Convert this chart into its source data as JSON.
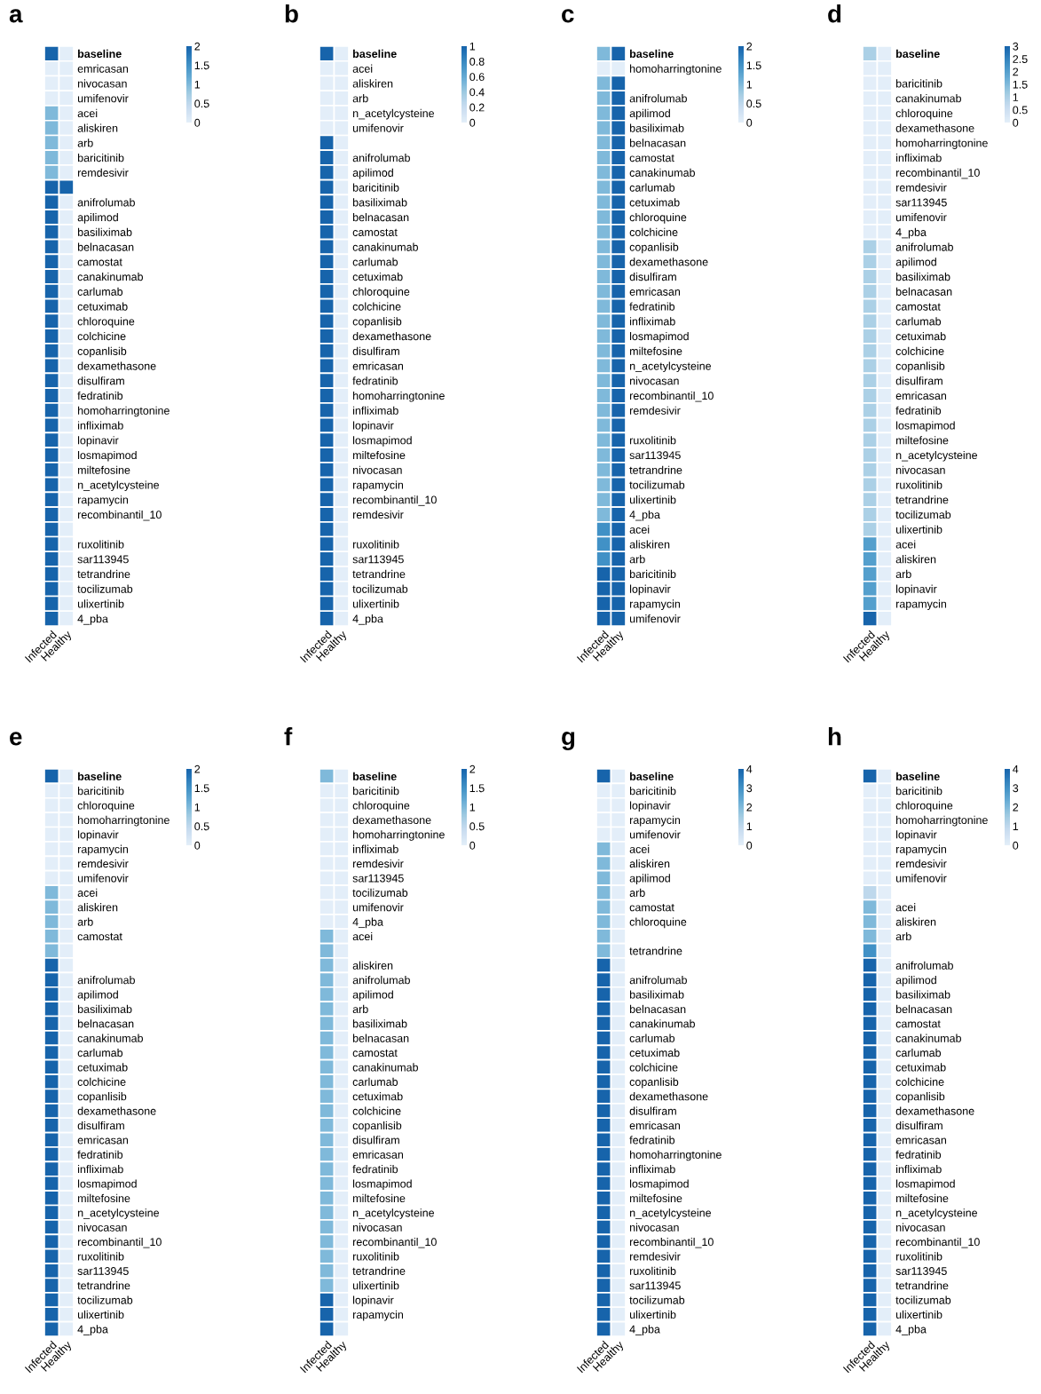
{
  "chart_data": [
    {
      "type": "heatmap",
      "title": "a",
      "categories": [
        "Infected",
        "Healthy"
      ],
      "clim": [
        0,
        2
      ],
      "cticks": [
        0,
        0.5,
        1,
        1.5,
        2
      ],
      "y_categories": [
        "baseline",
        "emricasan",
        "nivocasan",
        "umifenovir",
        "acei",
        "aliskiren",
        "arb",
        "baricitinib",
        "remdesivir",
        null,
        "anifrolumab",
        "apilimod",
        "basiliximab",
        "belnacasan",
        "camostat",
        "canakinumab",
        "carlumab",
        "cetuximab",
        "chloroquine",
        "colchicine",
        "copanlisib",
        "dexamethasone",
        "disulfiram",
        "fedratinib",
        "homoharringtonine",
        "infliximab",
        "lopinavir",
        "losmapimod",
        "miltefosine",
        "n_acetylcysteine",
        "rapamycin",
        "recombinantil_10",
        null,
        "ruxolitinib",
        "sar113945",
        "tetrandrine",
        "tocilizumab",
        "ulixertinib",
        "4_pba"
      ],
      "cells": [
        [
          2,
          0
        ],
        [
          0,
          0
        ],
        [
          0,
          0
        ],
        [
          0,
          0
        ],
        [
          1,
          0
        ],
        [
          1,
          0
        ],
        [
          1,
          0
        ],
        [
          1,
          0
        ],
        [
          1,
          0
        ],
        [
          2,
          2
        ],
        [
          2,
          0
        ],
        [
          2,
          0
        ],
        [
          2,
          0
        ],
        [
          2,
          0
        ],
        [
          2,
          0
        ],
        [
          2,
          0
        ],
        [
          2,
          0
        ],
        [
          2,
          0
        ],
        [
          2,
          0
        ],
        [
          2,
          0
        ],
        [
          2,
          0
        ],
        [
          2,
          0
        ],
        [
          2,
          0
        ],
        [
          2,
          0
        ],
        [
          2,
          0
        ],
        [
          2,
          0
        ],
        [
          2,
          0
        ],
        [
          2,
          0
        ],
        [
          2,
          0
        ],
        [
          2,
          0
        ],
        [
          2,
          0
        ],
        [
          2,
          0
        ],
        [
          2,
          0
        ],
        [
          2,
          0
        ],
        [
          2,
          0
        ],
        [
          2,
          0
        ],
        [
          2,
          0
        ],
        [
          2,
          0
        ],
        [
          2,
          0
        ]
      ]
    },
    {
      "type": "heatmap",
      "title": "b",
      "categories": [
        "Infected",
        "Healthy"
      ],
      "clim": [
        0,
        1
      ],
      "cticks": [
        0,
        0.2,
        0.4,
        0.6,
        0.8,
        1
      ],
      "y_categories": [
        "baseline",
        "acei",
        "aliskiren",
        "arb",
        "n_acetylcysteine",
        "umifenovir",
        null,
        "anifrolumab",
        "apilimod",
        "baricitinib",
        "basiliximab",
        "belnacasan",
        "camostat",
        "canakinumab",
        "carlumab",
        "cetuximab",
        "chloroquine",
        "colchicine",
        "copanlisib",
        "dexamethasone",
        "disulfiram",
        "emricasan",
        "fedratinib",
        "homoharringtonine",
        "infliximab",
        "lopinavir",
        "losmapimod",
        "miltefosine",
        "nivocasan",
        "rapamycin",
        "recombinantil_10",
        "remdesivir",
        null,
        "ruxolitinib",
        "sar113945",
        "tetrandrine",
        "tocilizumab",
        "ulixertinib",
        "4_pba"
      ],
      "cells": [
        [
          1,
          0
        ],
        [
          0,
          0
        ],
        [
          0,
          0
        ],
        [
          0,
          0
        ],
        [
          0,
          0
        ],
        [
          0,
          0
        ],
        [
          1,
          0
        ],
        [
          1,
          0
        ],
        [
          1,
          0
        ],
        [
          1,
          0
        ],
        [
          1,
          0
        ],
        [
          1,
          0
        ],
        [
          1,
          0
        ],
        [
          1,
          0
        ],
        [
          1,
          0
        ],
        [
          1,
          0
        ],
        [
          1,
          0
        ],
        [
          1,
          0
        ],
        [
          1,
          0
        ],
        [
          1,
          0
        ],
        [
          1,
          0
        ],
        [
          1,
          0
        ],
        [
          1,
          0
        ],
        [
          1,
          0
        ],
        [
          1,
          0
        ],
        [
          1,
          0
        ],
        [
          1,
          0
        ],
        [
          1,
          0
        ],
        [
          1,
          0
        ],
        [
          1,
          0
        ],
        [
          1,
          0
        ],
        [
          1,
          0
        ],
        [
          1,
          0
        ],
        [
          1,
          0
        ],
        [
          1,
          0
        ],
        [
          1,
          0
        ],
        [
          1,
          0
        ],
        [
          1,
          0
        ],
        [
          1,
          0
        ]
      ]
    },
    {
      "type": "heatmap",
      "title": "c",
      "categories": [
        "Infected",
        "Healthy"
      ],
      "clim": [
        0,
        2
      ],
      "cticks": [
        0,
        0.5,
        1,
        1.5,
        2
      ],
      "y_categories": [
        "baseline",
        "homoharringtonine",
        null,
        "anifrolumab",
        "apilimod",
        "basiliximab",
        "belnacasan",
        "camostat",
        "canakinumab",
        "carlumab",
        "cetuximab",
        "chloroquine",
        "colchicine",
        "copanlisib",
        "dexamethasone",
        "disulfiram",
        "emricasan",
        "fedratinib",
        "infliximab",
        "losmapimod",
        "miltefosine",
        "n_acetylcysteine",
        "nivocasan",
        "recombinantil_10",
        "remdesivir",
        null,
        "ruxolitinib",
        "sar113945",
        "tetrandrine",
        "tocilizumab",
        "ulixertinib",
        "4_pba",
        "acei",
        "aliskiren",
        "arb",
        "baricitinib",
        "lopinavir",
        "rapamycin",
        "umifenovir"
      ],
      "cells": [
        [
          1,
          2
        ],
        [
          0,
          0
        ],
        [
          1,
          2
        ],
        [
          1,
          2
        ],
        [
          1,
          2
        ],
        [
          1,
          2
        ],
        [
          1,
          2
        ],
        [
          1,
          2
        ],
        [
          1,
          2
        ],
        [
          1,
          2
        ],
        [
          1,
          2
        ],
        [
          1,
          2
        ],
        [
          1,
          2
        ],
        [
          1,
          2
        ],
        [
          1,
          2
        ],
        [
          1,
          2
        ],
        [
          1,
          2
        ],
        [
          1,
          2
        ],
        [
          1,
          2
        ],
        [
          1,
          2
        ],
        [
          1,
          2
        ],
        [
          1,
          2
        ],
        [
          1,
          2
        ],
        [
          1,
          2
        ],
        [
          1,
          2
        ],
        [
          1,
          2
        ],
        [
          1,
          2
        ],
        [
          1,
          2
        ],
        [
          1,
          2
        ],
        [
          1,
          2
        ],
        [
          1,
          2
        ],
        [
          1,
          2
        ],
        [
          1.5,
          2
        ],
        [
          1.5,
          2
        ],
        [
          1.5,
          2
        ],
        [
          2,
          2
        ],
        [
          2,
          2
        ],
        [
          2,
          2
        ],
        [
          2,
          2
        ]
      ]
    },
    {
      "type": "heatmap",
      "title": "d",
      "categories": [
        "Infected",
        "Healthy"
      ],
      "clim": [
        0,
        3
      ],
      "cticks": [
        0,
        0.5,
        1,
        1.5,
        2,
        2.5,
        3
      ],
      "y_categories": [
        "baseline",
        null,
        "baricitinib",
        "canakinumab",
        "chloroquine",
        "dexamethasone",
        "homoharringtonine",
        "infliximab",
        "recombinantil_10",
        "remdesivir",
        "sar113945",
        "umifenovir",
        "4_pba",
        "anifrolumab",
        "apilimod",
        "basiliximab",
        "belnacasan",
        "camostat",
        "carlumab",
        "cetuximab",
        "colchicine",
        "copanlisib",
        "disulfiram",
        "emricasan",
        "fedratinib",
        "losmapimod",
        "miltefosine",
        "n_acetylcysteine",
        "nivocasan",
        "ruxolitinib",
        "tetrandrine",
        "tocilizumab",
        "ulixertinib",
        "acei",
        "aliskiren",
        "arb",
        "lopinavir",
        "rapamycin",
        null
      ],
      "cells": [
        [
          1,
          0
        ],
        [
          0,
          0
        ],
        [
          0,
          0
        ],
        [
          0,
          0
        ],
        [
          0,
          0
        ],
        [
          0,
          0
        ],
        [
          0,
          0
        ],
        [
          0,
          0
        ],
        [
          0,
          0
        ],
        [
          0,
          0
        ],
        [
          0,
          0
        ],
        [
          0,
          0
        ],
        [
          0,
          0
        ],
        [
          1,
          0
        ],
        [
          1,
          0
        ],
        [
          1,
          0
        ],
        [
          1,
          0
        ],
        [
          1,
          0
        ],
        [
          1,
          0
        ],
        [
          1,
          0
        ],
        [
          1,
          0
        ],
        [
          1,
          0
        ],
        [
          1,
          0
        ],
        [
          1,
          0
        ],
        [
          1,
          0
        ],
        [
          1,
          0
        ],
        [
          1,
          0
        ],
        [
          1,
          0
        ],
        [
          1,
          0
        ],
        [
          1,
          0
        ],
        [
          1,
          0
        ],
        [
          1,
          0
        ],
        [
          1,
          0
        ],
        [
          2,
          0
        ],
        [
          2,
          0
        ],
        [
          2,
          0
        ],
        [
          2,
          0
        ],
        [
          2,
          0
        ],
        [
          3,
          0
        ]
      ]
    },
    {
      "type": "heatmap",
      "title": "e",
      "categories": [
        "Infected",
        "Healthy"
      ],
      "clim": [
        0,
        2
      ],
      "cticks": [
        0,
        0.5,
        1,
        1.5,
        2
      ],
      "y_categories": [
        "baseline",
        "baricitinib",
        "chloroquine",
        "homoharringtonine",
        "lopinavir",
        "rapamycin",
        "remdesivir",
        "umifenovir",
        "acei",
        "aliskiren",
        "arb",
        "camostat",
        null,
        null,
        "anifrolumab",
        "apilimod",
        "basiliximab",
        "belnacasan",
        "canakinumab",
        "carlumab",
        "cetuximab",
        "colchicine",
        "copanlisib",
        "dexamethasone",
        "disulfiram",
        "emricasan",
        "fedratinib",
        "infliximab",
        "losmapimod",
        "miltefosine",
        "n_acetylcysteine",
        "nivocasan",
        "recombinantil_10",
        "ruxolitinib",
        "sar113945",
        "tetrandrine",
        "tocilizumab",
        "ulixertinib",
        "4_pba"
      ],
      "cells": [
        [
          2,
          0
        ],
        [
          0,
          0
        ],
        [
          0,
          0
        ],
        [
          0,
          0
        ],
        [
          0,
          0
        ],
        [
          0,
          0
        ],
        [
          0,
          0
        ],
        [
          0,
          0
        ],
        [
          1,
          0
        ],
        [
          1,
          0
        ],
        [
          1,
          0
        ],
        [
          1,
          0
        ],
        [
          1,
          0
        ],
        [
          2,
          0
        ],
        [
          2,
          0
        ],
        [
          2,
          0
        ],
        [
          2,
          0
        ],
        [
          2,
          0
        ],
        [
          2,
          0
        ],
        [
          2,
          0
        ],
        [
          2,
          0
        ],
        [
          2,
          0
        ],
        [
          2,
          0
        ],
        [
          2,
          0
        ],
        [
          2,
          0
        ],
        [
          2,
          0
        ],
        [
          2,
          0
        ],
        [
          2,
          0
        ],
        [
          2,
          0
        ],
        [
          2,
          0
        ],
        [
          2,
          0
        ],
        [
          2,
          0
        ],
        [
          2,
          0
        ],
        [
          2,
          0
        ],
        [
          2,
          0
        ],
        [
          2,
          0
        ],
        [
          2,
          0
        ],
        [
          2,
          0
        ],
        [
          2,
          0
        ]
      ]
    },
    {
      "type": "heatmap",
      "title": "f",
      "categories": [
        "Infected",
        "Healthy"
      ],
      "clim": [
        0,
        2
      ],
      "cticks": [
        0,
        0.5,
        1,
        1.5,
        2
      ],
      "y_categories": [
        "baseline",
        "baricitinib",
        "chloroquine",
        "dexamethasone",
        "homoharringtonine",
        "infliximab",
        "remdesivir",
        "sar113945",
        "tocilizumab",
        "umifenovir",
        "4_pba",
        "acei",
        null,
        "aliskiren",
        "anifrolumab",
        "apilimod",
        "arb",
        "basiliximab",
        "belnacasan",
        "camostat",
        "canakinumab",
        "carlumab",
        "cetuximab",
        "colchicine",
        "copanlisib",
        "disulfiram",
        "emricasan",
        "fedratinib",
        "losmapimod",
        "miltefosine",
        "n_acetylcysteine",
        "nivocasan",
        "recombinantil_10",
        "ruxolitinib",
        "tetrandrine",
        "ulixertinib",
        "lopinavir",
        "rapamycin",
        null
      ],
      "cells": [
        [
          1,
          0
        ],
        [
          0,
          0
        ],
        [
          0,
          0
        ],
        [
          0,
          0
        ],
        [
          0,
          0
        ],
        [
          0,
          0
        ],
        [
          0,
          0
        ],
        [
          0,
          0
        ],
        [
          0,
          0
        ],
        [
          0,
          0
        ],
        [
          0,
          0
        ],
        [
          1,
          0
        ],
        [
          1,
          0
        ],
        [
          1,
          0
        ],
        [
          1,
          0
        ],
        [
          1,
          0
        ],
        [
          1,
          0
        ],
        [
          1,
          0
        ],
        [
          1,
          0
        ],
        [
          1,
          0
        ],
        [
          1,
          0
        ],
        [
          1,
          0
        ],
        [
          1,
          0
        ],
        [
          1,
          0
        ],
        [
          1,
          0
        ],
        [
          1,
          0
        ],
        [
          1,
          0
        ],
        [
          1,
          0
        ],
        [
          1,
          0
        ],
        [
          1,
          0
        ],
        [
          1,
          0
        ],
        [
          1,
          0
        ],
        [
          1,
          0
        ],
        [
          1,
          0
        ],
        [
          1,
          0
        ],
        [
          1,
          0
        ],
        [
          2,
          0
        ],
        [
          2,
          0
        ],
        [
          2,
          0
        ]
      ]
    },
    {
      "type": "heatmap",
      "title": "g",
      "categories": [
        "Infected",
        "Healthy"
      ],
      "clim": [
        0,
        4
      ],
      "cticks": [
        0,
        1,
        2,
        3,
        4
      ],
      "y_categories": [
        "baseline",
        "baricitinib",
        "lopinavir",
        "rapamycin",
        "umifenovir",
        "acei",
        "aliskiren",
        "apilimod",
        "arb",
        "camostat",
        "chloroquine",
        null,
        "tetrandrine",
        null,
        "anifrolumab",
        "basiliximab",
        "belnacasan",
        "canakinumab",
        "carlumab",
        "cetuximab",
        "colchicine",
        "copanlisib",
        "dexamethasone",
        "disulfiram",
        "emricasan",
        "fedratinib",
        "homoharringtonine",
        "infliximab",
        "losmapimod",
        "miltefosine",
        "n_acetylcysteine",
        "nivocasan",
        "recombinantil_10",
        "remdesivir",
        "ruxolitinib",
        "sar113945",
        "tocilizumab",
        "ulixertinib",
        "4_pba"
      ],
      "cells": [
        [
          4,
          0
        ],
        [
          0,
          0
        ],
        [
          0,
          0
        ],
        [
          0,
          0
        ],
        [
          0,
          0
        ],
        [
          2,
          0
        ],
        [
          2,
          0
        ],
        [
          2,
          0
        ],
        [
          2,
          0
        ],
        [
          2,
          0
        ],
        [
          2,
          0
        ],
        [
          2,
          0
        ],
        [
          2,
          0
        ],
        [
          4,
          0
        ],
        [
          4,
          0
        ],
        [
          4,
          0
        ],
        [
          4,
          0
        ],
        [
          4,
          0
        ],
        [
          4,
          0
        ],
        [
          4,
          0
        ],
        [
          4,
          0
        ],
        [
          4,
          0
        ],
        [
          4,
          0
        ],
        [
          4,
          0
        ],
        [
          4,
          0
        ],
        [
          4,
          0
        ],
        [
          4,
          0
        ],
        [
          4,
          0
        ],
        [
          4,
          0
        ],
        [
          4,
          0
        ],
        [
          4,
          0
        ],
        [
          4,
          0
        ],
        [
          4,
          0
        ],
        [
          4,
          0
        ],
        [
          4,
          0
        ],
        [
          4,
          0
        ],
        [
          4,
          0
        ],
        [
          4,
          0
        ],
        [
          4,
          0
        ]
      ]
    },
    {
      "type": "heatmap",
      "title": "h",
      "categories": [
        "Infected",
        "Healthy"
      ],
      "clim": [
        0,
        4
      ],
      "cticks": [
        0,
        1,
        2,
        3,
        4
      ],
      "y_categories": [
        "baseline",
        "baricitinib",
        "chloroquine",
        "homoharringtonine",
        "lopinavir",
        "rapamycin",
        "remdesivir",
        "umifenovir",
        null,
        "acei",
        "aliskiren",
        "arb",
        null,
        "anifrolumab",
        "apilimod",
        "basiliximab",
        "belnacasan",
        "camostat",
        "canakinumab",
        "carlumab",
        "cetuximab",
        "colchicine",
        "copanlisib",
        "dexamethasone",
        "disulfiram",
        "emricasan",
        "fedratinib",
        "infliximab",
        "losmapimod",
        "miltefosine",
        "n_acetylcysteine",
        "nivocasan",
        "recombinantil_10",
        "ruxolitinib",
        "sar113945",
        "tetrandrine",
        "tocilizumab",
        "ulixertinib",
        "4_pba"
      ],
      "cells": [
        [
          4,
          0
        ],
        [
          0,
          0
        ],
        [
          0,
          0
        ],
        [
          0,
          0
        ],
        [
          0,
          0
        ],
        [
          0,
          0
        ],
        [
          0,
          0
        ],
        [
          0,
          0
        ],
        [
          1,
          0
        ],
        [
          2,
          0
        ],
        [
          2,
          0
        ],
        [
          2,
          0
        ],
        [
          3,
          0
        ],
        [
          4,
          0
        ],
        [
          4,
          0
        ],
        [
          4,
          0
        ],
        [
          4,
          0
        ],
        [
          4,
          0
        ],
        [
          4,
          0
        ],
        [
          4,
          0
        ],
        [
          4,
          0
        ],
        [
          4,
          0
        ],
        [
          4,
          0
        ],
        [
          4,
          0
        ],
        [
          4,
          0
        ],
        [
          4,
          0
        ],
        [
          4,
          0
        ],
        [
          4,
          0
        ],
        [
          4,
          0
        ],
        [
          4,
          0
        ],
        [
          4,
          0
        ],
        [
          4,
          0
        ],
        [
          4,
          0
        ],
        [
          4,
          0
        ],
        [
          4,
          0
        ],
        [
          4,
          0
        ],
        [
          4,
          0
        ],
        [
          4,
          0
        ],
        [
          4,
          0
        ]
      ]
    }
  ]
}
